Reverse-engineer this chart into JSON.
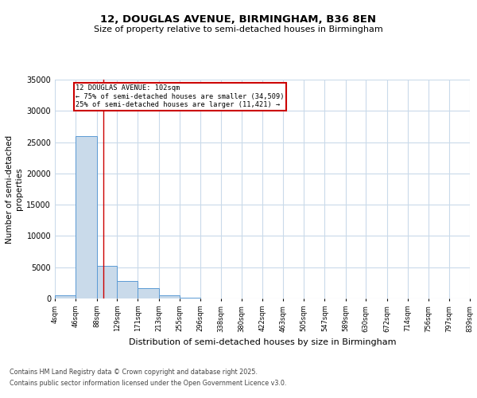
{
  "title1": "12, DOUGLAS AVENUE, BIRMINGHAM, B36 8EN",
  "title2": "Size of property relative to semi-detached houses in Birmingham",
  "xlabel": "Distribution of semi-detached houses by size in Birmingham",
  "ylabel": "Number of semi-detached\nproperties",
  "property_size": 102,
  "property_label": "12 DOUGLAS AVENUE: 102sqm",
  "pct_smaller": 75,
  "pct_larger": 25,
  "count_smaller": 34509,
  "count_larger": 11421,
  "bar_color": "#c9daea",
  "bar_edge_color": "#5b9bd5",
  "line_color": "#cc0000",
  "annotation_box_color": "#cc0000",
  "background_color": "#ffffff",
  "grid_color": "#c9daea",
  "footer1": "Contains HM Land Registry data © Crown copyright and database right 2025.",
  "footer2": "Contains public sector information licensed under the Open Government Licence v3.0.",
  "bins": [
    4,
    46,
    88,
    129,
    171,
    213,
    255,
    296,
    338,
    380,
    422,
    463,
    505,
    547,
    589,
    630,
    672,
    714,
    756,
    797,
    839
  ],
  "bin_labels": [
    "4sqm",
    "46sqm",
    "88sqm",
    "129sqm",
    "171sqm",
    "213sqm",
    "255sqm",
    "296sqm",
    "338sqm",
    "380sqm",
    "422sqm",
    "463sqm",
    "505sqm",
    "547sqm",
    "589sqm",
    "630sqm",
    "672sqm",
    "714sqm",
    "756sqm",
    "797sqm",
    "839sqm"
  ],
  "counts": [
    500,
    26000,
    5200,
    2800,
    1600,
    500,
    80,
    20,
    10,
    5,
    3,
    2,
    1,
    1,
    1,
    0,
    0,
    0,
    0,
    0
  ],
  "ylim": [
    0,
    35000
  ],
  "yticks": [
    0,
    5000,
    10000,
    15000,
    20000,
    25000,
    30000,
    35000
  ]
}
